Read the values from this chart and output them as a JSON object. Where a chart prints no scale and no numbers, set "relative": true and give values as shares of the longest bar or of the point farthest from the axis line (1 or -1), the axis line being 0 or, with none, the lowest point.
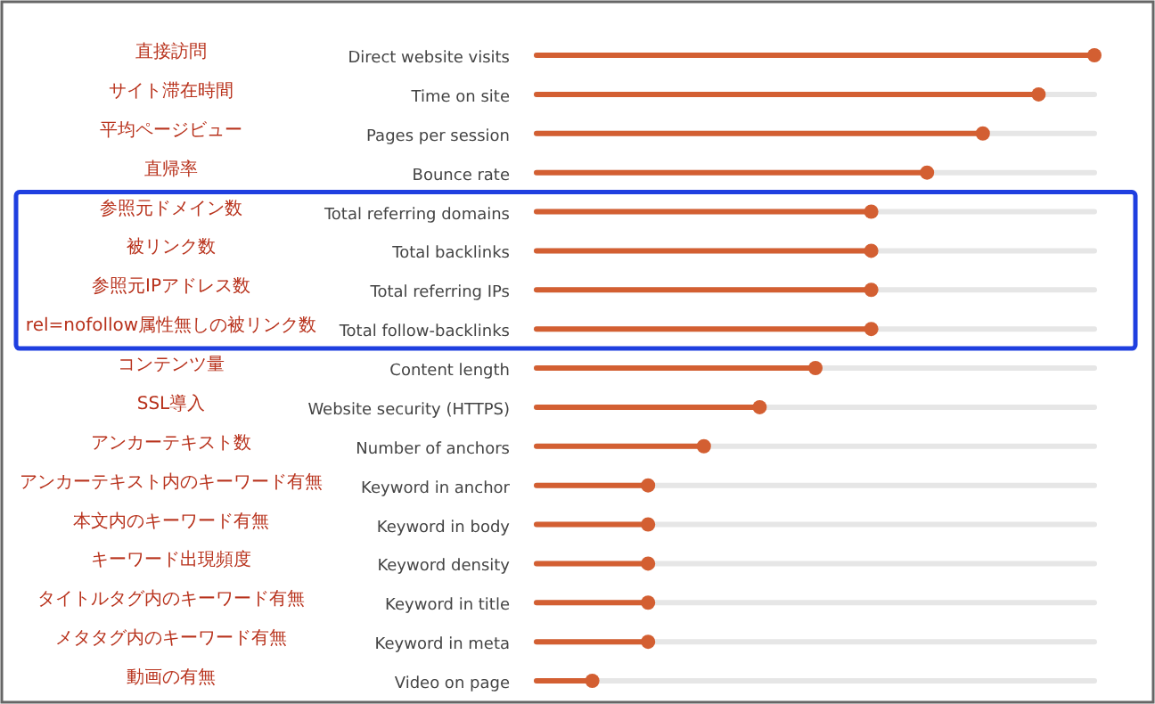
{
  "chart_data": {
    "type": "lollipop",
    "relative": true,
    "grid": true,
    "orientation": "horizontal",
    "color": "#d35f32",
    "categories": [
      "Direct website visits",
      "Time on site",
      "Pages per session",
      "Bounce rate",
      "Total referring domains",
      "Total backlinks",
      "Total referring IPs",
      "Total follow-backlinks",
      "Content length",
      "Website security (HTTPS)",
      "Number of anchors",
      "Keyword in anchor",
      "Keyword in body",
      "Keyword density",
      "Keyword in title",
      "Keyword in meta",
      "Video on page"
    ],
    "values": [
      1,
      0.9,
      0.8,
      0.7,
      0.6,
      0.6,
      0.6,
      0.6,
      0.5,
      0.4,
      0.3,
      0.2,
      0.2,
      0.2,
      0.2,
      0.2,
      0.1
    ],
    "annotations": [
      "直接訪問",
      "サイト滞在時間",
      "平均ページビュー",
      "直帰率",
      "参照元ドメイン数",
      "被リンク数",
      "参照元IPアドレス数",
      "rel=nofollow属性無しの被リンク数",
      "コンテンツ量",
      "SSL導入",
      "アンカーテキスト数",
      "アンカーテキスト内のキーワード有無",
      "本文内のキーワード有無",
      "キーワード出現頻度",
      "タイトルタグ内のキーワード有無",
      "メタタグ内のキーワード有無",
      "動画の有無"
    ]
  }
}
